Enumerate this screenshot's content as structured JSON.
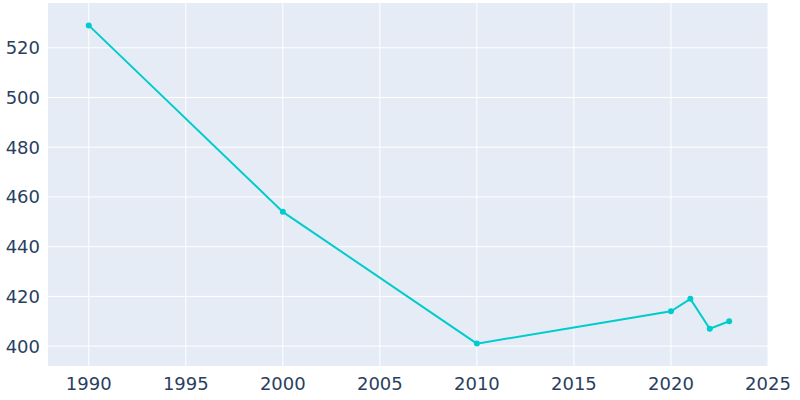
{
  "chart_data": {
    "type": "line",
    "x": [
      1990,
      2000,
      2010,
      2020,
      2021,
      2022,
      2023
    ],
    "values": [
      529,
      454,
      401,
      414,
      419,
      407,
      410
    ],
    "color": "#00cccc",
    "marker": "circle",
    "xlim": [
      1987.9,
      2025
    ],
    "xticks": [
      1990,
      1995,
      2000,
      2005,
      2010,
      2015,
      2020,
      2025
    ],
    "ylim": [
      392,
      538
    ],
    "yticks": [
      400,
      420,
      440,
      460,
      480,
      500,
      520
    ],
    "grid": true
  }
}
